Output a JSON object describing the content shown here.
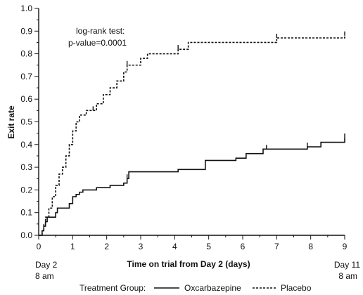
{
  "chart_data": {
    "type": "line",
    "title": "",
    "xlabel": "Time on trial from Day 2 (days)",
    "ylabel": "Exit rate",
    "xlim": [
      0,
      9
    ],
    "ylim": [
      0,
      1.0
    ],
    "xticks": [
      0,
      1,
      2,
      3,
      4,
      5,
      6,
      7,
      8,
      9
    ],
    "yticks": [
      "0.0",
      "0.1",
      "0.2",
      "0.3",
      "0.4",
      "0.5",
      "0.6",
      "0.7",
      "0.8",
      "0.9",
      "1.0"
    ],
    "start_label": [
      "Day 2",
      "8 am"
    ],
    "end_label": [
      "Day 11",
      "8 am"
    ],
    "grid": false,
    "annotation": [
      "log-rank test:",
      "p-value=0.0001"
    ],
    "legend": {
      "title": "Treatment Group:",
      "placement": "bottom"
    },
    "series": [
      {
        "name": "Oxcarbazepine",
        "style": "solid",
        "color": "#111111",
        "step": true,
        "points": [
          [
            0,
            0
          ],
          [
            0.05,
            0.0
          ],
          [
            0.1,
            0.02
          ],
          [
            0.15,
            0.04
          ],
          [
            0.2,
            0.06
          ],
          [
            0.25,
            0.08
          ],
          [
            0.5,
            0.1
          ],
          [
            0.55,
            0.12
          ],
          [
            0.9,
            0.14
          ],
          [
            1.0,
            0.17
          ],
          [
            1.1,
            0.18
          ],
          [
            1.2,
            0.19
          ],
          [
            1.3,
            0.2
          ],
          [
            1.7,
            0.21
          ],
          [
            2.1,
            0.22
          ],
          [
            2.5,
            0.23
          ],
          [
            2.6,
            0.25
          ],
          [
            2.65,
            0.28
          ],
          [
            4.1,
            0.29
          ],
          [
            4.9,
            0.33
          ],
          [
            5.8,
            0.34
          ],
          [
            6.1,
            0.36
          ],
          [
            6.6,
            0.38
          ],
          [
            7.9,
            0.39
          ],
          [
            8.3,
            0.41
          ],
          [
            9.0,
            0.43
          ]
        ],
        "censor_marks": [
          2.6,
          6.7,
          7.9,
          9.0
        ]
      },
      {
        "name": "Placebo",
        "style": "dashed",
        "color": "#111111",
        "step": true,
        "points": [
          [
            0,
            0
          ],
          [
            0.05,
            0.0
          ],
          [
            0.1,
            0.02
          ],
          [
            0.15,
            0.05
          ],
          [
            0.2,
            0.08
          ],
          [
            0.3,
            0.12
          ],
          [
            0.4,
            0.17
          ],
          [
            0.5,
            0.22
          ],
          [
            0.6,
            0.27
          ],
          [
            0.7,
            0.3
          ],
          [
            0.8,
            0.35
          ],
          [
            0.9,
            0.4
          ],
          [
            1.0,
            0.46
          ],
          [
            1.1,
            0.5
          ],
          [
            1.2,
            0.53
          ],
          [
            1.4,
            0.55
          ],
          [
            1.7,
            0.58
          ],
          [
            1.9,
            0.62
          ],
          [
            2.1,
            0.65
          ],
          [
            2.3,
            0.68
          ],
          [
            2.5,
            0.72
          ],
          [
            2.6,
            0.75
          ],
          [
            3.0,
            0.78
          ],
          [
            3.2,
            0.8
          ],
          [
            4.1,
            0.82
          ],
          [
            4.4,
            0.85
          ],
          [
            7.0,
            0.87
          ],
          [
            9.0,
            0.88
          ]
        ],
        "censor_marks": [
          1.6,
          2.6,
          4.1,
          7.0,
          9.0
        ]
      }
    ]
  }
}
